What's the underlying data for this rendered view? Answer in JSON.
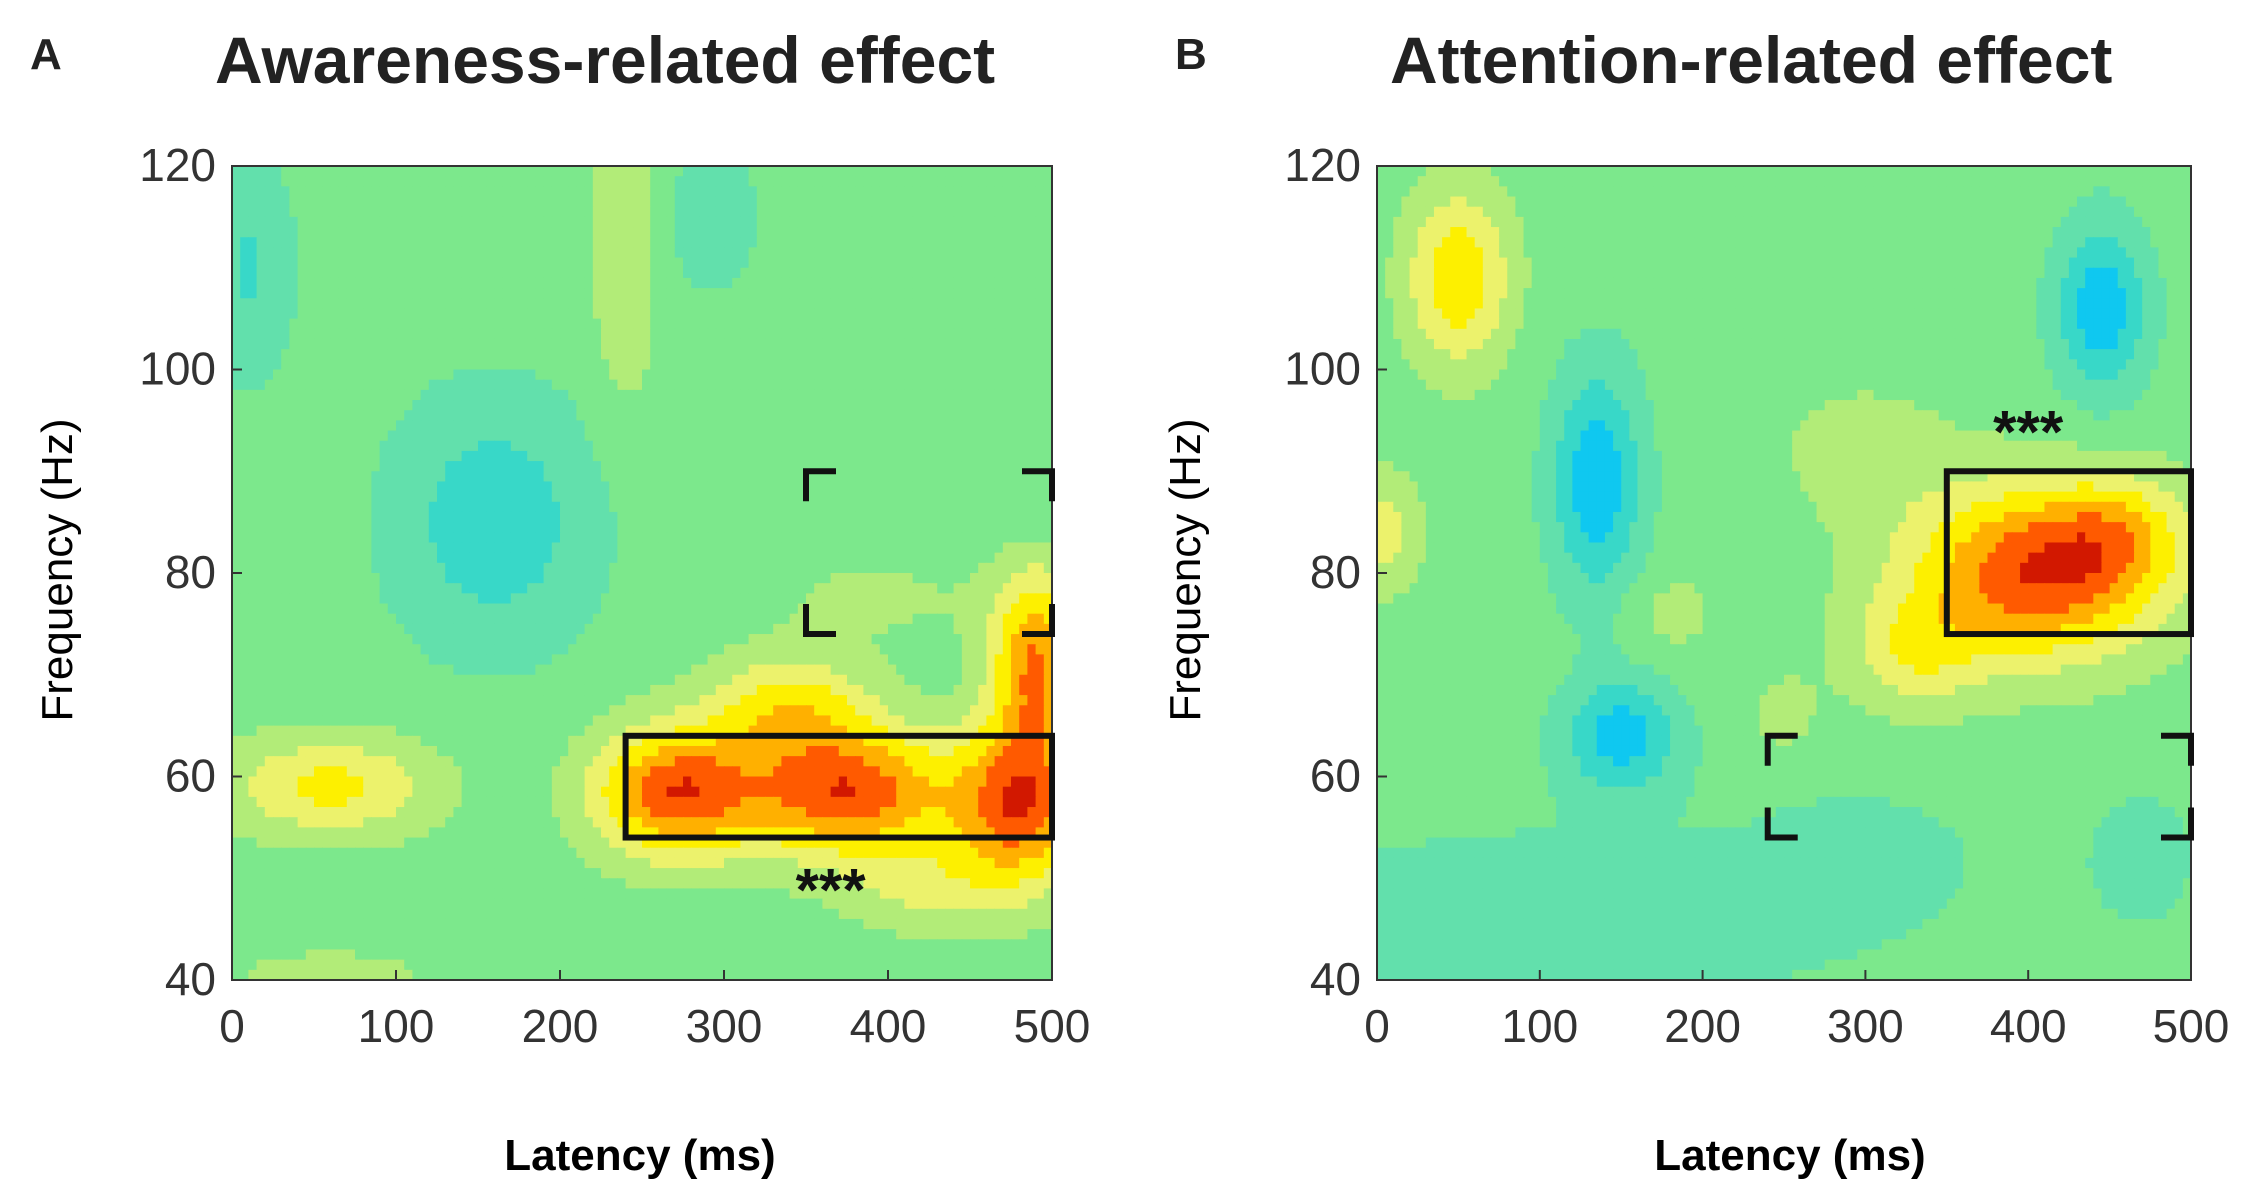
{
  "figure": {
    "panels": [
      {
        "letter": "A",
        "title": "Awareness-related effect"
      },
      {
        "letter": "B",
        "title": "Attention-related effect"
      }
    ]
  },
  "chart_data": [
    {
      "type": "heatmap",
      "panel": "A",
      "title": "Awareness-related effect",
      "xlabel": "Latency (ms)",
      "ylabel": "Frequency (Hz)",
      "xlim": [
        0,
        500
      ],
      "ylim": [
        40,
        120
      ],
      "x_ticks": [
        0,
        100,
        200,
        300,
        400,
        500
      ],
      "y_ticks": [
        40,
        60,
        80,
        100,
        120
      ],
      "colormap": [
        "#0fc8f0",
        "#38d8c8",
        "#62e0ac",
        "#7ce88c",
        "#b2ec78",
        "#ecf26c",
        "#fdf000",
        "#ffb000",
        "#ff5a00",
        "#d21800",
        "#8c0000"
      ],
      "background_color": "#7ce88c",
      "blobs": [
        {
          "x": 270,
          "y": 58.5,
          "sx": 35,
          "sy": 4.5,
          "amp": 5.2
        },
        {
          "x": 375,
          "y": 58.5,
          "sx": 45,
          "sy": 4.5,
          "amp": 5.4
        },
        {
          "x": 480,
          "y": 57,
          "sx": 28,
          "sy": 5.5,
          "amp": 5.0
        },
        {
          "x": 490,
          "y": 71,
          "sx": 20,
          "sy": 6.5,
          "amp": 4.6
        },
        {
          "x": 340,
          "y": 67,
          "sx": 35,
          "sy": 3.5,
          "amp": 2.8
        },
        {
          "x": 60,
          "y": 59,
          "sx": 45,
          "sy": 3.5,
          "amp": 2.8
        },
        {
          "x": 425,
          "y": 49,
          "sx": 35,
          "sy": 3,
          "amp": 1.6
        },
        {
          "x": 400,
          "y": 78,
          "sx": 60,
          "sy": 4,
          "amp": 0.9
        },
        {
          "x": 240,
          "y": 112,
          "sx": 15,
          "sy": 12,
          "amp": 1.4
        },
        {
          "x": 160,
          "y": 85,
          "sx": 45,
          "sy": 9,
          "amp": -2.2
        },
        {
          "x": 10,
          "y": 110,
          "sx": 20,
          "sy": 8,
          "amp": -1.6
        },
        {
          "x": 290,
          "y": 115,
          "sx": 25,
          "sy": 6,
          "amp": -1.0
        },
        {
          "x": 440,
          "y": 90,
          "sx": 80,
          "sy": 12,
          "amp": -0.5
        },
        {
          "x": 60,
          "y": 40,
          "sx": 40,
          "sy": 2,
          "amp": 1.2
        }
      ],
      "solid_box": {
        "x": [
          240,
          500
        ],
        "y": [
          54,
          64
        ]
      },
      "dashed_box": {
        "x": [
          350,
          500
        ],
        "y": [
          74,
          90
        ]
      },
      "annotation": {
        "text": "***",
        "x": 365,
        "y": 49
      }
    },
    {
      "type": "heatmap",
      "panel": "B",
      "title": "Attention-related effect",
      "xlabel": "Latency (ms)",
      "ylabel": "Frequency (Hz)",
      "xlim": [
        0,
        500
      ],
      "ylim": [
        40,
        120
      ],
      "x_ticks": [
        0,
        100,
        200,
        300,
        400,
        500
      ],
      "y_ticks": [
        40,
        60,
        80,
        100,
        120
      ],
      "colormap": [
        "#0fc8f0",
        "#38d8c8",
        "#62e0ac",
        "#7ce88c",
        "#b2ec78",
        "#ecf26c",
        "#fdf000",
        "#ffb000",
        "#ff5a00",
        "#d21800",
        "#8c0000"
      ],
      "background_color": "#7ce88c",
      "blobs": [
        {
          "x": 405,
          "y": 80,
          "sx": 55,
          "sy": 6,
          "amp": 5.4
        },
        {
          "x": 455,
          "y": 84,
          "sx": 30,
          "sy": 4,
          "amp": 2.0
        },
        {
          "x": 330,
          "y": 72,
          "sx": 30,
          "sy": 4,
          "amp": 2.0
        },
        {
          "x": 300,
          "y": 92,
          "sx": 40,
          "sy": 5,
          "amp": 0.9
        },
        {
          "x": 50,
          "y": 109,
          "sx": 22,
          "sy": 6,
          "amp": 3.4
        },
        {
          "x": 5,
          "y": 84,
          "sx": 15,
          "sy": 4,
          "amp": 2.0
        },
        {
          "x": 180,
          "y": 76,
          "sx": 20,
          "sy": 3,
          "amp": 0.9
        },
        {
          "x": 250,
          "y": 66,
          "sx": 15,
          "sy": 3,
          "amp": 0.9
        },
        {
          "x": 135,
          "y": 89,
          "sx": 20,
          "sy": 8,
          "amp": -3.2
        },
        {
          "x": 150,
          "y": 64,
          "sx": 25,
          "sy": 4,
          "amp": -3.0
        },
        {
          "x": 445,
          "y": 106,
          "sx": 20,
          "sy": 6,
          "amp": -3.2
        },
        {
          "x": 100,
          "y": 45,
          "sx": 140,
          "sy": 8,
          "amp": -1.0
        },
        {
          "x": 300,
          "y": 52,
          "sx": 50,
          "sy": 5,
          "amp": -0.8
        },
        {
          "x": 470,
          "y": 52,
          "sx": 30,
          "sy": 6,
          "amp": -0.8
        }
      ],
      "solid_box": {
        "x": [
          350,
          500
        ],
        "y": [
          74,
          90
        ]
      },
      "dashed_box": {
        "x": [
          240,
          500
        ],
        "y": [
          54,
          64
        ]
      },
      "annotation": {
        "text": "***",
        "x": 400,
        "y": 94
      }
    }
  ]
}
